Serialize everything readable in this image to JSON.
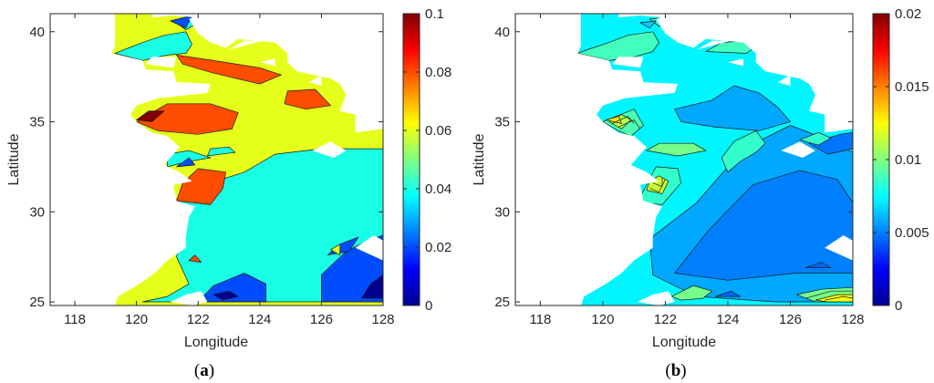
{
  "chart_data": [
    {
      "type": "heatmap",
      "panel": "(a)",
      "panel_letter": "a",
      "xlabel": "Longitude",
      "ylabel": "Latitude",
      "xlim": [
        117.2,
        128
      ],
      "ylim": [
        24.8,
        41
      ],
      "xticks": [
        118,
        120,
        122,
        124,
        126,
        128
      ],
      "yticks": [
        25,
        30,
        35,
        40
      ],
      "colorbar": {
        "min": 0,
        "max": 0.1,
        "ticks": [
          "0",
          "0.02",
          "0.04",
          "0.06",
          "0.08",
          "0.1"
        ],
        "colormap": "jet"
      },
      "background_value": 0.06,
      "regions": [
        {
          "level": 0.04,
          "points": [
            [
              120.2,
              25
            ],
            [
              121,
              25.3
            ],
            [
              121.7,
              26
            ],
            [
              121.3,
              27.5
            ],
            [
              121.5,
              29
            ],
            [
              121.3,
              30.7
            ],
            [
              122.2,
              31.5
            ],
            [
              123.5,
              32.2
            ],
            [
              124.5,
              33.2
            ],
            [
              126,
              33.5
            ],
            [
              128,
              33.5
            ],
            [
              128,
              25
            ],
            [
              120.2,
              25
            ]
          ]
        },
        {
          "level": 0.04,
          "points": [
            [
              121,
              32.5
            ],
            [
              121.7,
              32.8
            ],
            [
              122.4,
              33
            ],
            [
              121.7,
              33.4
            ],
            [
              121,
              33.2
            ]
          ]
        },
        {
          "level": 0.04,
          "points": [
            [
              122.3,
              33.1
            ],
            [
              123.2,
              33.3
            ],
            [
              123,
              33.6
            ],
            [
              122.4,
              33.5
            ]
          ]
        },
        {
          "level": 0.04,
          "points": [
            [
              119.3,
              38.8
            ],
            [
              120.2,
              38.4
            ],
            [
              121,
              38.7
            ],
            [
              121.6,
              38.8
            ],
            [
              121.8,
              39.3
            ],
            [
              121.6,
              40
            ],
            [
              120.9,
              39.8
            ],
            [
              120.2,
              39.4
            ],
            [
              119.6,
              39
            ]
          ]
        },
        {
          "level": 0.04,
          "points": [
            [
              121.3,
              40.5
            ],
            [
              122.2,
              40.7
            ],
            [
              121.6,
              40.1
            ]
          ]
        },
        {
          "level": 0.02,
          "points": [
            [
              122,
              25
            ],
            [
              122.5,
              25.9
            ],
            [
              123.5,
              26.6
            ],
            [
              124.2,
              26
            ],
            [
              124.2,
              25
            ],
            [
              122,
              25
            ]
          ]
        },
        {
          "level": 0.0,
          "points": [
            [
              122.5,
              25.4
            ],
            [
              123,
              25.6
            ],
            [
              123.3,
              25.3
            ],
            [
              122.8,
              25.1
            ]
          ]
        },
        {
          "level": 0.02,
          "points": [
            [
              126,
              25
            ],
            [
              126,
              26.5
            ],
            [
              126.8,
              27.8
            ],
            [
              127.5,
              28.4
            ],
            [
              128,
              28.7
            ],
            [
              128,
              25
            ],
            [
              126,
              25
            ]
          ]
        },
        {
          "level": 0.0,
          "points": [
            [
              127.3,
              25.2
            ],
            [
              128,
              25.2
            ],
            [
              128,
              26.5
            ],
            [
              127.6,
              26
            ]
          ]
        },
        {
          "level": 0.02,
          "points": [
            [
              126.2,
              27.6
            ],
            [
              126.6,
              28.2
            ],
            [
              127.2,
              28.6
            ],
            [
              126.9,
              27.8
            ]
          ]
        },
        {
          "level": 0.02,
          "points": [
            [
              121.3,
              32.5
            ],
            [
              121.9,
              32.6
            ],
            [
              121.7,
              33
            ]
          ]
        },
        {
          "level": 0.02,
          "points": [
            [
              121.1,
              40.6
            ],
            [
              121.8,
              40.9
            ],
            [
              121.6,
              40.2
            ]
          ]
        },
        {
          "level": 0.06,
          "points": [
            [
              126.3,
              27.9
            ],
            [
              126.6,
              28.2
            ],
            [
              126.6,
              27.6
            ]
          ]
        },
        {
          "level": 0.08,
          "points": [
            [
              121.3,
              30.6
            ],
            [
              122.4,
              30.4
            ],
            [
              122.8,
              31.3
            ],
            [
              122.9,
              32.2
            ],
            [
              122,
              32.4
            ],
            [
              121.5,
              31.6
            ]
          ]
        },
        {
          "level": 0.08,
          "points": [
            [
              120,
              35
            ],
            [
              121,
              36
            ],
            [
              122.4,
              36
            ],
            [
              123.3,
              35.5
            ],
            [
              123.1,
              34.6
            ],
            [
              122,
              34.3
            ],
            [
              120.7,
              34.5
            ]
          ]
        },
        {
          "level": 0.1,
          "points": [
            [
              120,
              35.1
            ],
            [
              120.4,
              35.6
            ],
            [
              120.9,
              35.6
            ],
            [
              120.5,
              35
            ]
          ]
        },
        {
          "level": 0.08,
          "points": [
            [
              121.3,
              38.7
            ],
            [
              122.5,
              38.4
            ],
            [
              124,
              38
            ],
            [
              124.7,
              37.6
            ],
            [
              124,
              37.1
            ],
            [
              122.5,
              37.7
            ],
            [
              121.5,
              38.2
            ]
          ]
        },
        {
          "level": 0.08,
          "points": [
            [
              124.9,
              36.7
            ],
            [
              125.8,
              36.8
            ],
            [
              126.3,
              35.9
            ],
            [
              125.5,
              35.7
            ],
            [
              124.8,
              36
            ]
          ]
        },
        {
          "level": 0.08,
          "points": [
            [
              121.7,
              27.3
            ],
            [
              121.9,
              27.6
            ],
            [
              122.1,
              27.2
            ]
          ]
        }
      ]
    },
    {
      "type": "heatmap",
      "panel": "(b)",
      "panel_letter": "b",
      "xlabel": "Longitude",
      "ylabel": "Latitude",
      "xlim": [
        117.2,
        128
      ],
      "ylim": [
        24.8,
        41
      ],
      "xticks": [
        118,
        120,
        122,
        124,
        126,
        128
      ],
      "yticks": [
        25,
        30,
        35,
        40
      ],
      "colorbar": {
        "min": 0,
        "max": 0.02,
        "ticks": [
          "0",
          "0.005",
          "0.01",
          "0.015",
          "0.02"
        ],
        "colormap": "jet"
      },
      "background_value": 0.0073,
      "regions": [
        {
          "level": 0.0058,
          "points": [
            [
              121.5,
              28.5
            ],
            [
              123,
              30.5
            ],
            [
              124.5,
              33.5
            ],
            [
              126,
              34.8
            ],
            [
              127.2,
              34
            ],
            [
              128,
              33.3
            ],
            [
              128,
              25
            ],
            [
              125.5,
              25
            ],
            [
              123,
              25.3
            ],
            [
              121.6,
              26.5
            ]
          ]
        },
        {
          "level": 0.0058,
          "points": [
            [
              122.3,
              35.7
            ],
            [
              123.5,
              36.2
            ],
            [
              124.2,
              37
            ],
            [
              125,
              36.6
            ],
            [
              125.6,
              35.8
            ],
            [
              126,
              35
            ],
            [
              125,
              34.5
            ],
            [
              123.6,
              34.7
            ],
            [
              122.5,
              35
            ]
          ]
        },
        {
          "level": 0.005,
          "points": [
            [
              122.3,
              26.6
            ],
            [
              123.4,
              29
            ],
            [
              124.8,
              31.5
            ],
            [
              126.3,
              32.3
            ],
            [
              127.5,
              31.8
            ],
            [
              128,
              30.5
            ],
            [
              128,
              26.6
            ],
            [
              126.2,
              26.6
            ],
            [
              124,
              26.2
            ]
          ]
        },
        {
          "level": 0.0048,
          "points": [
            [
              126.6,
              33.8
            ],
            [
              127.6,
              34.3
            ],
            [
              128,
              34.4
            ],
            [
              128,
              33.5
            ],
            [
              127.2,
              33.2
            ]
          ]
        },
        {
          "level": 0.0045,
          "points": [
            [
              126.5,
              26.9
            ],
            [
              127,
              27.2
            ],
            [
              127.3,
              26.9
            ]
          ]
        },
        {
          "level": 0.0045,
          "points": [
            [
              123.6,
              25.3
            ],
            [
              124.1,
              25.6
            ],
            [
              124.4,
              25.3
            ]
          ]
        },
        {
          "level": 0.0085,
          "points": [
            [
              124,
              32.2
            ],
            [
              124.4,
              32.8
            ],
            [
              124.9,
              33.3
            ],
            [
              125.2,
              33.8
            ],
            [
              124.9,
              34.5
            ],
            [
              124.2,
              33.9
            ],
            [
              123.8,
              33
            ]
          ]
        },
        {
          "level": 0.0085,
          "points": [
            [
              126.3,
              34
            ],
            [
              126.9,
              34.4
            ],
            [
              127.3,
              34.1
            ],
            [
              126.9,
              33.7
            ]
          ]
        },
        {
          "level": 0.0088,
          "points": [
            [
              119.2,
              38.8
            ],
            [
              120.2,
              38.4
            ],
            [
              121,
              38.6
            ],
            [
              121.6,
              38.9
            ],
            [
              121.8,
              39.4
            ],
            [
              121.6,
              40
            ],
            [
              120.8,
              39.8
            ],
            [
              120.2,
              39.4
            ],
            [
              119.5,
              39
            ]
          ]
        },
        {
          "level": 0.0088,
          "points": [
            [
              123.3,
              38.9
            ],
            [
              124.6,
              38.8
            ],
            [
              125,
              39.3
            ],
            [
              124.6,
              39.5
            ],
            [
              123.8,
              39.4
            ]
          ]
        },
        {
          "level": 0.0085,
          "points": [
            [
              121.5,
              40.7
            ],
            [
              122.2,
              40.8
            ],
            [
              121.8,
              40.3
            ]
          ]
        },
        {
          "level": 0.0065,
          "points": [
            [
              121.2,
              40.5
            ],
            [
              121.7,
              40.6
            ],
            [
              121.5,
              40.2
            ]
          ]
        },
        {
          "level": 0.009,
          "points": [
            [
              120,
              35
            ],
            [
              121,
              35.7
            ],
            [
              121.3,
              34.8
            ],
            [
              120.9,
              34.2
            ],
            [
              120.5,
              34.5
            ]
          ]
        },
        {
          "level": 0.011,
          "points": [
            [
              120.2,
              35
            ],
            [
              120.6,
              35.4
            ],
            [
              120.9,
              35.1
            ],
            [
              120.6,
              34.6
            ]
          ]
        },
        {
          "level": 0.013,
          "points": [
            [
              120.1,
              35.1
            ],
            [
              120.5,
              35.3
            ],
            [
              120.6,
              34.9
            ]
          ]
        },
        {
          "level": 0.0085,
          "points": [
            [
              121.1,
              30.5
            ],
            [
              121.9,
              30.4
            ],
            [
              122.5,
              31.6
            ],
            [
              122.4,
              32.4
            ],
            [
              121.7,
              32.5
            ],
            [
              121.4,
              31.5
            ]
          ]
        },
        {
          "level": 0.0115,
          "points": [
            [
              121.4,
              31.2
            ],
            [
              121.9,
              31
            ],
            [
              122.1,
              31.7
            ],
            [
              121.8,
              32
            ],
            [
              121.5,
              31.7
            ]
          ]
        },
        {
          "level": 0.0098,
          "points": [
            [
              121.4,
              33.4
            ],
            [
              122.4,
              33.1
            ],
            [
              123.3,
              33.4
            ],
            [
              122.9,
              33.8
            ],
            [
              121.8,
              33.8
            ]
          ]
        },
        {
          "level": 0.0098,
          "points": [
            [
              122.2,
              25.3
            ],
            [
              122.9,
              25.9
            ],
            [
              123.5,
              25.6
            ],
            [
              123.2,
              25.2
            ],
            [
              122.5,
              25.1
            ]
          ]
        },
        {
          "level": 0.0098,
          "points": [
            [
              126.2,
              25.4
            ],
            [
              127,
              25.7
            ],
            [
              128,
              25.8
            ],
            [
              128,
              25
            ],
            [
              126.8,
              25
            ]
          ]
        },
        {
          "level": 0.0125,
          "points": [
            [
              126.8,
              25.1
            ],
            [
              127.5,
              25.4
            ],
            [
              128,
              25.4
            ],
            [
              128,
              25
            ],
            [
              127.2,
              25
            ]
          ]
        }
      ]
    }
  ]
}
